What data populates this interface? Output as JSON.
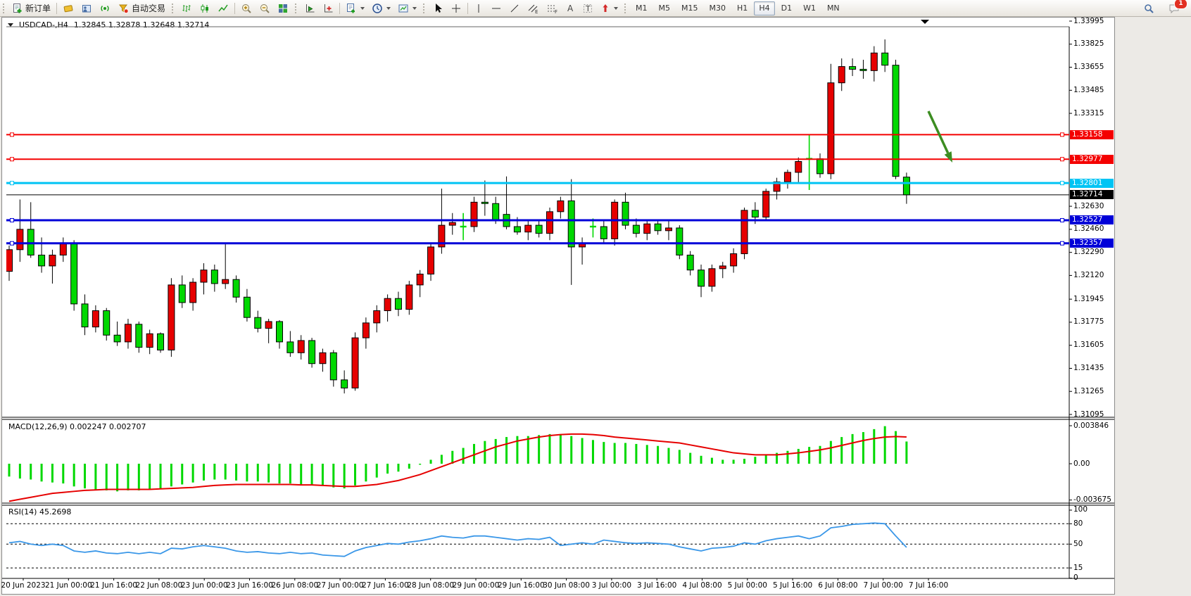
{
  "toolbar": {
    "new_order_label": "新订单",
    "autotrade_label": "自动交易",
    "timeframes": [
      "M1",
      "M5",
      "M15",
      "M30",
      "H1",
      "H4",
      "D1",
      "W1",
      "MN"
    ],
    "active_timeframe": "H4",
    "notification_count": "1",
    "accent_green": "#1f9c1f",
    "accent_gold": "#eab31c",
    "accent_blue": "#3a6ea5",
    "accent_red": "#d42a2a"
  },
  "chart_title": {
    "symbol": "USDCAD-,H4",
    "ohlc": "1.32845 1.32878 1.32648 1.32714"
  },
  "chart_data": {
    "type": "candlestick",
    "symbol": "USDCAD",
    "timeframe": "H4",
    "up_color": "#e60000",
    "down_color": "#00d800",
    "price_axis_ticks": [
      1.33995,
      1.33825,
      1.33655,
      1.33485,
      1.33315,
      1.3263,
      1.3246,
      1.3229,
      1.3212,
      1.31945,
      1.31775,
      1.31605,
      1.31435,
      1.31265,
      1.31095
    ],
    "hlines": [
      {
        "price": 1.33158,
        "label": "1.33158",
        "color": "#f40000",
        "width": 2,
        "handles": true
      },
      {
        "price": 1.32977,
        "label": "1.32977",
        "color": "#f40000",
        "width": 2,
        "handles": true
      },
      {
        "price": 1.32801,
        "label": "1.32801",
        "color": "#00c4f4",
        "width": 3,
        "handles": true
      },
      {
        "price": 1.32714,
        "label": "1.32714",
        "color": "#000000",
        "width": 1,
        "handles": false
      },
      {
        "price": 1.32527,
        "label": "1.32527",
        "color": "#0000d8",
        "width": 3,
        "handles": true
      },
      {
        "price": 1.32357,
        "label": "1.32357",
        "color": "#0000d8",
        "width": 3,
        "handles": true
      }
    ],
    "time_labels": [
      "20 Jun 2023",
      "21 Jun 00:00",
      "21 Jun 16:00",
      "22 Jun 08:00",
      "23 Jun 00:00",
      "23 Jun 16:00",
      "26 Jun 08:00",
      "27 Jun 00:00",
      "27 Jun 16:00",
      "28 Jun 08:00",
      "29 Jun 00:00",
      "29 Jun 16:00",
      "30 Jun 08:00",
      "3 Jul 00:00",
      "3 Jul 16:00",
      "4 Jul 08:00",
      "5 Jul 00:00",
      "5 Jul 16:00",
      "6 Jul 08:00",
      "7 Jul 00:00",
      "7 Jul 16:00"
    ],
    "candles": [
      [
        1.3215,
        1.3234,
        1.3208,
        1.3231
      ],
      [
        1.3231,
        1.3268,
        1.3222,
        1.3246
      ],
      [
        1.3246,
        1.3266,
        1.3225,
        1.3227
      ],
      [
        1.3227,
        1.324,
        1.3214,
        1.3219
      ],
      [
        1.3219,
        1.3231,
        1.3206,
        1.3227
      ],
      [
        1.3227,
        1.324,
        1.3222,
        1.3236
      ],
      [
        1.3236,
        1.3238,
        1.3186,
        1.3191
      ],
      [
        1.3191,
        1.3198,
        1.3168,
        1.3174
      ],
      [
        1.3174,
        1.319,
        1.317,
        1.3186
      ],
      [
        1.3186,
        1.3188,
        1.3164,
        1.3168
      ],
      [
        1.3168,
        1.3178,
        1.316,
        1.3163
      ],
      [
        1.3163,
        1.318,
        1.3158,
        1.3176
      ],
      [
        1.3176,
        1.3178,
        1.3155,
        1.3159
      ],
      [
        1.3159,
        1.3172,
        1.3154,
        1.3169
      ],
      [
        1.3169,
        1.317,
        1.3155,
        1.3157
      ],
      [
        1.3157,
        1.321,
        1.3152,
        1.3205
      ],
      [
        1.3205,
        1.3212,
        1.3188,
        1.3192
      ],
      [
        1.3192,
        1.321,
        1.3186,
        1.3207
      ],
      [
        1.3207,
        1.3221,
        1.3198,
        1.3216
      ],
      [
        1.3216,
        1.322,
        1.32,
        1.3206
      ],
      [
        1.3206,
        1.3235,
        1.3202,
        1.3209
      ],
      [
        1.3209,
        1.3212,
        1.3192,
        1.3196
      ],
      [
        1.3196,
        1.3202,
        1.3178,
        1.3181
      ],
      [
        1.3181,
        1.3186,
        1.317,
        1.3173
      ],
      [
        1.3173,
        1.318,
        1.3162,
        1.3178
      ],
      [
        1.3178,
        1.3179,
        1.3158,
        1.3163
      ],
      [
        1.3163,
        1.3171,
        1.3152,
        1.3155
      ],
      [
        1.3155,
        1.3168,
        1.315,
        1.3164
      ],
      [
        1.3164,
        1.3166,
        1.3144,
        1.3147
      ],
      [
        1.3147,
        1.3158,
        1.3141,
        1.3155
      ],
      [
        1.3155,
        1.3157,
        1.313,
        1.3135
      ],
      [
        1.3135,
        1.3142,
        1.3125,
        1.3129
      ],
      [
        1.3129,
        1.317,
        1.3127,
        1.3166
      ],
      [
        1.3166,
        1.3181,
        1.3158,
        1.3177
      ],
      [
        1.3177,
        1.319,
        1.317,
        1.3186
      ],
      [
        1.3186,
        1.3198,
        1.3178,
        1.3195
      ],
      [
        1.3195,
        1.32,
        1.3182,
        1.3187
      ],
      [
        1.3187,
        1.3208,
        1.3183,
        1.3205
      ],
      [
        1.3205,
        1.3216,
        1.3196,
        1.3213
      ],
      [
        1.3213,
        1.3236,
        1.3208,
        1.3233
      ],
      [
        1.3233,
        1.3276,
        1.3228,
        1.3249
      ],
      [
        1.3249,
        1.3258,
        1.3242,
        1.3251
      ],
      [
        1.3248,
        1.3258,
        1.3238,
        1.3248
      ],
      [
        1.3248,
        1.327,
        1.3244,
        1.3266
      ],
      [
        1.3266,
        1.3282,
        1.3256,
        1.3265
      ],
      [
        1.3265,
        1.327,
        1.325,
        1.3253
      ],
      [
        1.3257,
        1.3285,
        1.3246,
        1.3248
      ],
      [
        1.3248,
        1.3255,
        1.3242,
        1.3244
      ],
      [
        1.3244,
        1.3252,
        1.3238,
        1.3249
      ],
      [
        1.3249,
        1.3252,
        1.324,
        1.3243
      ],
      [
        1.3243,
        1.3262,
        1.3238,
        1.3259
      ],
      [
        1.3259,
        1.327,
        1.3254,
        1.3267
      ],
      [
        1.3267,
        1.3283,
        1.3205,
        1.3233
      ],
      [
        1.3233,
        1.324,
        1.322,
        1.3236
      ],
      [
        1.3248,
        1.3254,
        1.324,
        1.3248
      ],
      [
        1.3248,
        1.3252,
        1.3236,
        1.3239
      ],
      [
        1.3239,
        1.3268,
        1.3234,
        1.3266
      ],
      [
        1.3266,
        1.3273,
        1.3246,
        1.3249
      ],
      [
        1.3249,
        1.3254,
        1.324,
        1.3243
      ],
      [
        1.3243,
        1.3252,
        1.3238,
        1.325
      ],
      [
        1.325,
        1.3253,
        1.3242,
        1.3245
      ],
      [
        1.3245,
        1.3252,
        1.3238,
        1.3247
      ],
      [
        1.3247,
        1.3249,
        1.3224,
        1.3227
      ],
      [
        1.3227,
        1.323,
        1.3212,
        1.3216
      ],
      [
        1.3216,
        1.322,
        1.3196,
        1.3204
      ],
      [
        1.3204,
        1.322,
        1.32,
        1.3217
      ],
      [
        1.3217,
        1.3222,
        1.321,
        1.3219
      ],
      [
        1.3219,
        1.3232,
        1.3214,
        1.3228
      ],
      [
        1.3228,
        1.3262,
        1.3224,
        1.326
      ],
      [
        1.326,
        1.3266,
        1.325,
        1.3255
      ],
      [
        1.3255,
        1.3276,
        1.3252,
        1.3274
      ],
      [
        1.3274,
        1.3284,
        1.3268,
        1.3281
      ],
      [
        1.3281,
        1.329,
        1.3276,
        1.3288
      ],
      [
        1.3288,
        1.3299,
        1.328,
        1.3296
      ],
      [
        1.3298,
        1.3316,
        1.3275,
        1.3298
      ],
      [
        1.3298,
        1.3302,
        1.3284,
        1.3287
      ],
      [
        1.3287,
        1.3368,
        1.3283,
        1.3354
      ],
      [
        1.3354,
        1.3372,
        1.3348,
        1.3366
      ],
      [
        1.3366,
        1.3372,
        1.3359,
        1.3364
      ],
      [
        1.3364,
        1.3371,
        1.3357,
        1.3363
      ],
      [
        1.3363,
        1.3381,
        1.3355,
        1.3376
      ],
      [
        1.3376,
        1.3386,
        1.3362,
        1.3367
      ],
      [
        1.3367,
        1.3371,
        1.3283,
        1.3285
      ],
      [
        1.32845,
        1.32878,
        1.32648,
        1.32714
      ]
    ],
    "indicators": {
      "macd": {
        "header": "MACD(12,26,9) 0.002247 0.002707",
        "name": "MACD(12,26,9)",
        "current_macd": 0.002247,
        "current_signal": 0.002707,
        "scale_ticks": [
          0.003846,
          0.0,
          -0.003675
        ],
        "scale_tick_labels": [
          "0.003846",
          "0.00",
          "-0.003675"
        ],
        "histogram_color": "#00d800",
        "signal_color": "#e60000",
        "histogram": [
          -1.3,
          -1.5,
          -1.6,
          -1.8,
          -1.9,
          -2.0,
          -2.3,
          -2.5,
          -2.6,
          -2.7,
          -2.8,
          -2.7,
          -2.7,
          -2.6,
          -2.6,
          -2.3,
          -2.1,
          -1.9,
          -1.7,
          -1.6,
          -1.6,
          -1.7,
          -1.8,
          -1.8,
          -1.9,
          -2.0,
          -2.0,
          -2.1,
          -2.1,
          -2.2,
          -2.4,
          -2.5,
          -2.2,
          -1.8,
          -1.4,
          -1.0,
          -0.8,
          -0.5,
          -0.1,
          0.4,
          0.9,
          1.3,
          1.6,
          2.0,
          2.3,
          2.5,
          2.7,
          2.8,
          2.8,
          2.9,
          3.0,
          3.0,
          2.8,
          2.6,
          2.4,
          2.2,
          2.1,
          2.1,
          2.0,
          1.9,
          1.8,
          1.6,
          1.4,
          1.1,
          0.8,
          0.6,
          0.4,
          0.4,
          0.5,
          0.7,
          0.9,
          1.1,
          1.3,
          1.5,
          1.7,
          1.8,
          2.3,
          2.7,
          3.0,
          3.2,
          3.5,
          3.8,
          3.3,
          2.247
        ],
        "signal": [
          -3.8,
          -3.6,
          -3.4,
          -3.2,
          -3.0,
          -2.9,
          -2.8,
          -2.7,
          -2.65,
          -2.6,
          -2.6,
          -2.6,
          -2.6,
          -2.6,
          -2.55,
          -2.5,
          -2.45,
          -2.4,
          -2.3,
          -2.2,
          -2.15,
          -2.1,
          -2.1,
          -2.1,
          -2.1,
          -2.1,
          -2.1,
          -2.15,
          -2.15,
          -2.2,
          -2.25,
          -2.3,
          -2.3,
          -2.2,
          -2.1,
          -1.9,
          -1.7,
          -1.4,
          -1.1,
          -0.7,
          -0.3,
          0.1,
          0.5,
          0.9,
          1.3,
          1.7,
          2.0,
          2.3,
          2.5,
          2.7,
          2.85,
          2.95,
          3.0,
          3.0,
          2.95,
          2.85,
          2.7,
          2.6,
          2.5,
          2.4,
          2.3,
          2.2,
          2.1,
          1.9,
          1.7,
          1.5,
          1.3,
          1.1,
          1.0,
          0.9,
          0.9,
          0.9,
          1.0,
          1.1,
          1.25,
          1.4,
          1.6,
          1.85,
          2.1,
          2.35,
          2.55,
          2.7,
          2.75,
          2.707
        ],
        "unit": 0.001
      },
      "rsi": {
        "header": "RSI(14) 45.2698",
        "name": "RSI(14)",
        "current": 45.2698,
        "levels": [
          80,
          50,
          15
        ],
        "scale_ticks": [
          100,
          80,
          50,
          15,
          0
        ],
        "line_color": "#3a97e8",
        "series": [
          52,
          54,
          50,
          48,
          50,
          48,
          40,
          38,
          40,
          37,
          36,
          38,
          36,
          38,
          36,
          44,
          43,
          46,
          48,
          46,
          44,
          40,
          38,
          39,
          37,
          36,
          38,
          36,
          37,
          34,
          33,
          32,
          40,
          45,
          48,
          51,
          50,
          53,
          55,
          58,
          62,
          60,
          59,
          62,
          62,
          60,
          58,
          56,
          58,
          57,
          60,
          48,
          50,
          52,
          50,
          56,
          54,
          52,
          51,
          52,
          51,
          50,
          46,
          43,
          40,
          44,
          45,
          47,
          52,
          50,
          55,
          58,
          60,
          62,
          58,
          62,
          74,
          76,
          79,
          80,
          81,
          80,
          62,
          45.27
        ]
      }
    },
    "annotation_arrow": {
      "from": [
        1318,
        157
      ],
      "to": [
        1352,
        230
      ],
      "color": "#3c8d21"
    },
    "shift_marker_x": 1313
  }
}
